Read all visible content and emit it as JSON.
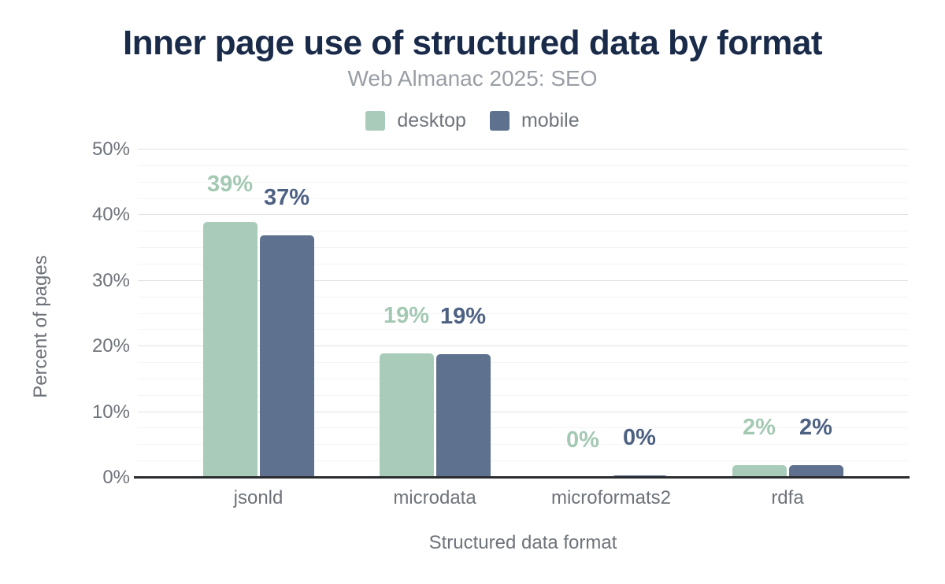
{
  "title": "Inner page use of structured data by format",
  "subtitle": "Web Almanac 2025: SEO",
  "legend": {
    "items": [
      {
        "label": "desktop",
        "color": "#a8ccb9"
      },
      {
        "label": "mobile",
        "color": "#5e718e"
      }
    ]
  },
  "chart_data": {
    "type": "bar",
    "title": "Inner page use of structured data by format",
    "subtitle": "Web Almanac 2025: SEO",
    "categories": [
      "jsonld",
      "microdata",
      "microformats2",
      "rdfa"
    ],
    "series": [
      {
        "name": "desktop",
        "color": "#a8ccb9",
        "label_color": "#a4c9b3",
        "values": [
          39,
          19,
          0,
          2
        ],
        "value_labels": [
          "39%",
          "19%",
          "0%",
          "2%"
        ],
        "bar_heights_pct": [
          39,
          19,
          0,
          1.9
        ]
      },
      {
        "name": "mobile",
        "color": "#5e718e",
        "label_color": "#4d6183",
        "values": [
          37,
          19,
          0,
          2
        ],
        "value_labels": [
          "37%",
          "19%",
          "0%",
          "2%"
        ],
        "bar_heights_pct": [
          36.9,
          18.8,
          0.35,
          1.9
        ]
      }
    ],
    "xlabel": "Structured data format",
    "ylabel": "Percent of pages",
    "ylim": [
      0,
      50
    ],
    "y_ticks": [
      {
        "value": 0,
        "label": "0%"
      },
      {
        "value": 10,
        "label": "10%"
      },
      {
        "value": 20,
        "label": "20%"
      },
      {
        "value": 30,
        "label": "30%"
      },
      {
        "value": 40,
        "label": "40%"
      },
      {
        "value": 50,
        "label": "50%"
      }
    ],
    "minor_grid_step": 2.5,
    "grid": true,
    "legend_position": "top"
  }
}
